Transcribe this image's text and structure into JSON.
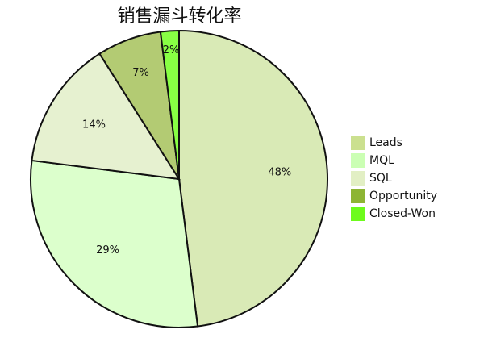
{
  "chart_data": {
    "type": "pie",
    "title": "销售漏斗转化率",
    "categories": [
      "Leads",
      "MQL",
      "SQL",
      "Opportunity",
      "Closed-Won"
    ],
    "values": [
      48,
      29,
      14,
      7,
      2
    ],
    "labels": [
      "48%",
      "29%",
      "14%",
      "7%",
      "2%"
    ],
    "legend": {
      "position": "right"
    },
    "colors": {
      "slices": [
        "#d9eab6",
        "#dcffcc",
        "#e6f1d0",
        "#b3cb73",
        "#88ff44"
      ],
      "legend": [
        "#cbe08f",
        "#cbffb4",
        "#e2efc4",
        "#8db534",
        "#6dfb1c"
      ],
      "stroke": "#111111"
    }
  }
}
